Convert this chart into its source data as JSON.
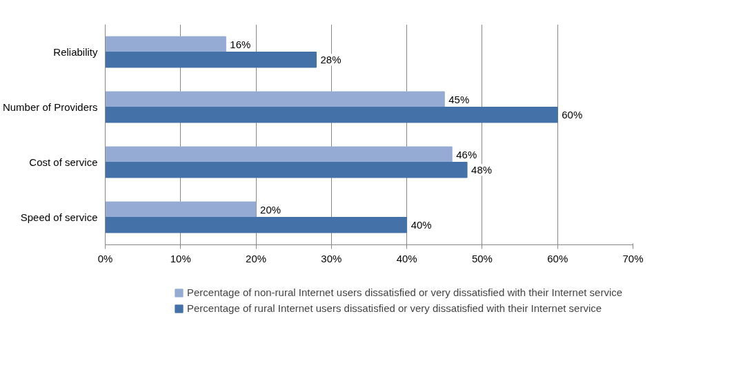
{
  "chart_data": {
    "type": "bar",
    "orientation": "horizontal",
    "categories": [
      "Reliability",
      "Number of Providers",
      "Cost of service",
      "Speed of service"
    ],
    "series": [
      {
        "name": "Percentage of non-rural Internet users dissatisfied or very dissatisfied with their Internet service",
        "color": "#95abd4",
        "values": [
          16,
          45,
          46,
          20
        ],
        "value_labels": [
          "16%",
          "45%",
          "46%",
          "20%"
        ]
      },
      {
        "name": "Percentage of rural Internet users dissatisfied or very dissatisfied with their Internet service",
        "color": "#4472a8",
        "values": [
          28,
          60,
          48,
          40
        ],
        "value_labels": [
          "28%",
          "60%",
          "48%",
          "40%"
        ]
      }
    ],
    "xlim": [
      0,
      70
    ],
    "xticks": [
      {
        "value": 0,
        "label": "0%"
      },
      {
        "value": 10,
        "label": "10%"
      },
      {
        "value": 20,
        "label": "20%"
      },
      {
        "value": 30,
        "label": "30%"
      },
      {
        "value": 40,
        "label": "40%"
      },
      {
        "value": 50,
        "label": "50%"
      },
      {
        "value": 60,
        "label": "60%"
      },
      {
        "value": 70,
        "label": "70%"
      }
    ],
    "grid": "x",
    "legend": "bottom"
  }
}
